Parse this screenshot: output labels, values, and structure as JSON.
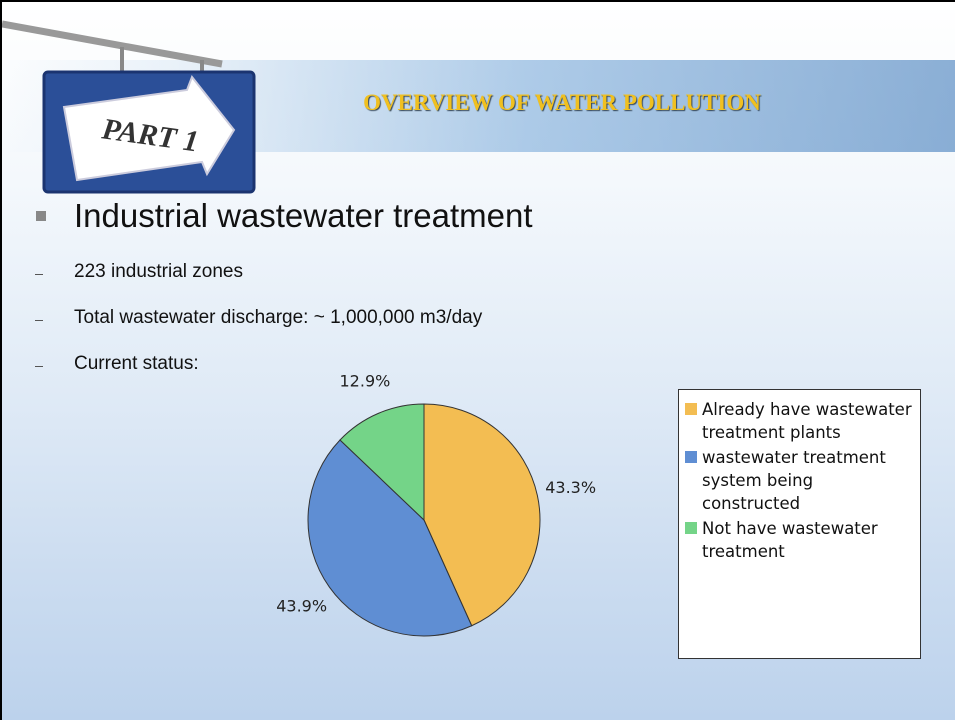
{
  "header": {
    "part": "PART 1",
    "title": "OVERVIEW OF WATER POLLUTION"
  },
  "heading": "Industrial wastewater treatment",
  "items": [
    "223 industrial zones",
    "Total wastewater discharge:  ~ 1,000,000 m3/day",
    "Current status:"
  ],
  "chart_data": {
    "type": "pie",
    "categories": [
      "Already have wastewater treatment plants",
      "wastewater treatment system being constructed",
      "Not have wastewater treatment"
    ],
    "values": [
      43.3,
      43.9,
      12.9
    ],
    "value_labels": [
      "43.3%",
      "43.9%",
      "12.9%"
    ],
    "colors": [
      "#f3bd52",
      "#5f8ed3",
      "#74d488"
    ],
    "legend": "right"
  }
}
